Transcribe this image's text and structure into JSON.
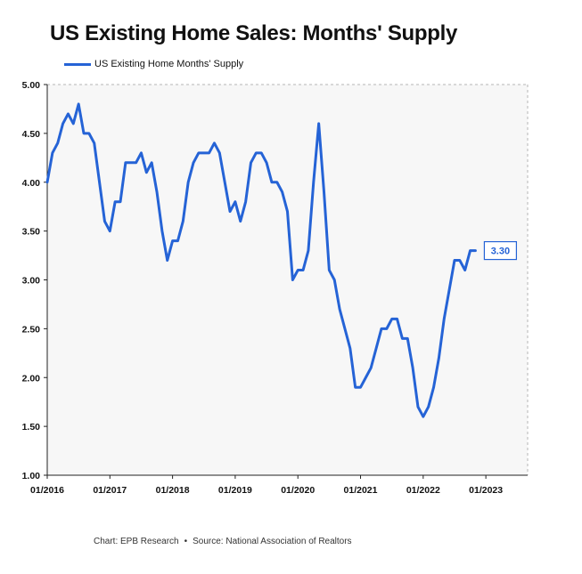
{
  "chart_data": {
    "type": "line",
    "title": "US Existing Home Sales: Months' Supply",
    "xlabel": "",
    "ylabel": "",
    "ylim": [
      1.0,
      5.0
    ],
    "xlim": [
      "2016-01",
      "2023-09"
    ],
    "grid": false,
    "legend_position": "top-left",
    "y_ticks": [
      "1.00",
      "1.50",
      "2.00",
      "2.50",
      "3.00",
      "3.50",
      "4.00",
      "4.50",
      "5.00"
    ],
    "x_ticks": [
      "01/2016",
      "01/2017",
      "01/2018",
      "01/2019",
      "01/2020",
      "01/2021",
      "01/2022",
      "01/2023"
    ],
    "series": [
      {
        "name": "US Existing Home Months' Supply",
        "color": "#2563d6",
        "x": [
          "2016-01",
          "2016-02",
          "2016-03",
          "2016-04",
          "2016-05",
          "2016-06",
          "2016-07",
          "2016-08",
          "2016-09",
          "2016-10",
          "2016-11",
          "2016-12",
          "2017-01",
          "2017-02",
          "2017-03",
          "2017-04",
          "2017-05",
          "2017-06",
          "2017-07",
          "2017-08",
          "2017-09",
          "2017-10",
          "2017-11",
          "2017-12",
          "2018-01",
          "2018-02",
          "2018-03",
          "2018-04",
          "2018-05",
          "2018-06",
          "2018-07",
          "2018-08",
          "2018-09",
          "2018-10",
          "2018-11",
          "2018-12",
          "2019-01",
          "2019-02",
          "2019-03",
          "2019-04",
          "2019-05",
          "2019-06",
          "2019-07",
          "2019-08",
          "2019-09",
          "2019-10",
          "2019-11",
          "2019-12",
          "2020-01",
          "2020-02",
          "2020-03",
          "2020-04",
          "2020-05",
          "2020-06",
          "2020-07",
          "2020-08",
          "2020-09",
          "2020-10",
          "2020-11",
          "2020-12",
          "2021-01",
          "2021-02",
          "2021-03",
          "2021-04",
          "2021-05",
          "2021-06",
          "2021-07",
          "2021-08",
          "2021-09",
          "2021-10",
          "2021-11",
          "2021-12",
          "2022-01",
          "2022-02",
          "2022-03",
          "2022-04",
          "2022-05",
          "2022-06",
          "2022-07",
          "2022-08",
          "2022-09",
          "2022-10",
          "2022-11"
        ],
        "values": [
          4.0,
          4.3,
          4.4,
          4.6,
          4.7,
          4.6,
          4.8,
          4.5,
          4.5,
          4.4,
          4.0,
          3.6,
          3.5,
          3.8,
          3.8,
          4.2,
          4.2,
          4.2,
          4.3,
          4.1,
          4.2,
          3.9,
          3.5,
          3.2,
          3.4,
          3.4,
          3.6,
          4.0,
          4.2,
          4.3,
          4.3,
          4.3,
          4.4,
          4.3,
          4.0,
          3.7,
          3.8,
          3.6,
          3.8,
          4.2,
          4.3,
          4.3,
          4.2,
          4.0,
          4.0,
          3.9,
          3.7,
          3.0,
          3.1,
          3.1,
          3.3,
          4.0,
          4.6,
          3.9,
          3.1,
          3.0,
          2.7,
          2.5,
          2.3,
          1.9,
          1.9,
          2.0,
          2.1,
          2.3,
          2.5,
          2.5,
          2.6,
          2.6,
          2.4,
          2.4,
          2.1,
          1.7,
          1.6,
          1.7,
          1.9,
          2.2,
          2.6,
          2.9,
          3.2,
          3.2,
          3.1,
          3.3,
          3.3
        ]
      }
    ],
    "end_label": "3.30"
  },
  "source": {
    "chart_credit": "Chart: EPB Research",
    "separator": "•",
    "source_text": "Source: National Association of Realtors"
  }
}
